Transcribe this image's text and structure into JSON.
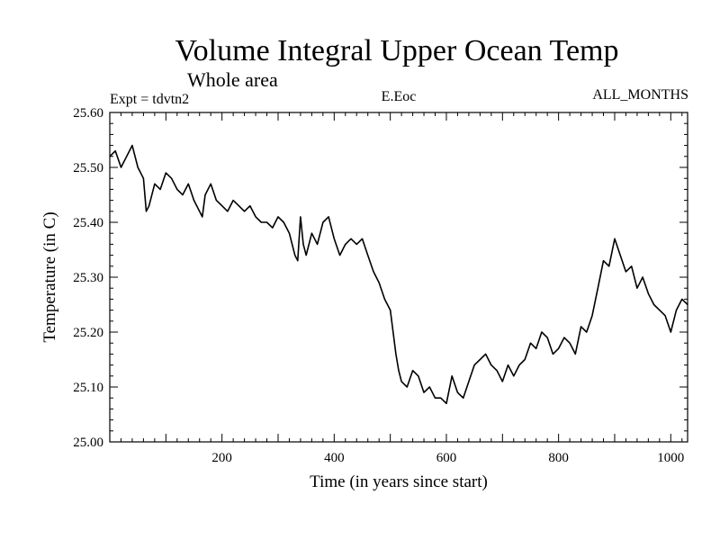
{
  "chart_data": {
    "type": "line",
    "title": "Volume Integral Upper Ocean Temp",
    "subtitle": "Whole area",
    "header_left": "Expt = tdvtn2",
    "header_center": "E.Eoc",
    "header_right": "ALL_MONTHS",
    "xlabel": "Time (in years since start)",
    "ylabel": "Temperature (in C)",
    "xlim": [
      0,
      1030
    ],
    "ylim": [
      25.0,
      25.6
    ],
    "x_ticks": [
      200,
      400,
      600,
      800,
      1000
    ],
    "x_tick_labels": [
      "200",
      "400",
      "600",
      "800",
      "1000"
    ],
    "y_ticks": [
      25.0,
      25.1,
      25.2,
      25.3,
      25.4,
      25.5,
      25.6
    ],
    "y_tick_labels": [
      "25.00",
      "25.10",
      "25.20",
      "25.30",
      "25.40",
      "25.50",
      "25.60"
    ],
    "grid": false,
    "series": [
      {
        "name": "temperature",
        "color": "#000000",
        "x": [
          0,
          10,
          20,
          30,
          40,
          50,
          60,
          65,
          70,
          80,
          90,
          100,
          110,
          120,
          130,
          140,
          150,
          160,
          165,
          170,
          180,
          190,
          200,
          210,
          220,
          230,
          240,
          250,
          260,
          270,
          280,
          290,
          300,
          310,
          320,
          330,
          335,
          340,
          345,
          350,
          360,
          370,
          380,
          390,
          400,
          410,
          420,
          430,
          440,
          450,
          460,
          470,
          480,
          490,
          500,
          505,
          510,
          515,
          520,
          530,
          540,
          550,
          560,
          570,
          580,
          590,
          600,
          610,
          620,
          630,
          640,
          650,
          660,
          670,
          680,
          690,
          700,
          710,
          720,
          730,
          740,
          750,
          760,
          770,
          780,
          790,
          800,
          810,
          820,
          830,
          840,
          850,
          860,
          870,
          880,
          890,
          900,
          910,
          920,
          930,
          940,
          950,
          960,
          970,
          980,
          990,
          1000,
          1010,
          1020,
          1030
        ],
        "values": [
          25.52,
          25.53,
          25.5,
          25.52,
          25.54,
          25.5,
          25.48,
          25.42,
          25.43,
          25.47,
          25.46,
          25.49,
          25.48,
          25.46,
          25.45,
          25.47,
          25.44,
          25.42,
          25.41,
          25.45,
          25.47,
          25.44,
          25.43,
          25.42,
          25.44,
          25.43,
          25.42,
          25.43,
          25.41,
          25.4,
          25.4,
          25.39,
          25.41,
          25.4,
          25.38,
          25.34,
          25.33,
          25.41,
          25.36,
          25.34,
          25.38,
          25.36,
          25.4,
          25.41,
          25.37,
          25.34,
          25.36,
          25.37,
          25.36,
          25.37,
          25.34,
          25.31,
          25.29,
          25.26,
          25.24,
          25.2,
          25.16,
          25.13,
          25.11,
          25.1,
          25.13,
          25.12,
          25.09,
          25.1,
          25.08,
          25.08,
          25.07,
          25.12,
          25.09,
          25.08,
          25.11,
          25.14,
          25.15,
          25.16,
          25.14,
          25.13,
          25.11,
          25.14,
          25.12,
          25.14,
          25.15,
          25.18,
          25.17,
          25.2,
          25.19,
          25.16,
          25.17,
          25.19,
          25.18,
          25.16,
          25.21,
          25.2,
          25.23,
          25.28,
          25.33,
          25.32,
          25.37,
          25.34,
          25.31,
          25.32,
          25.28,
          25.3,
          25.27,
          25.25,
          25.24,
          25.23,
          25.2,
          25.24,
          25.26,
          25.25
        ]
      }
    ]
  }
}
